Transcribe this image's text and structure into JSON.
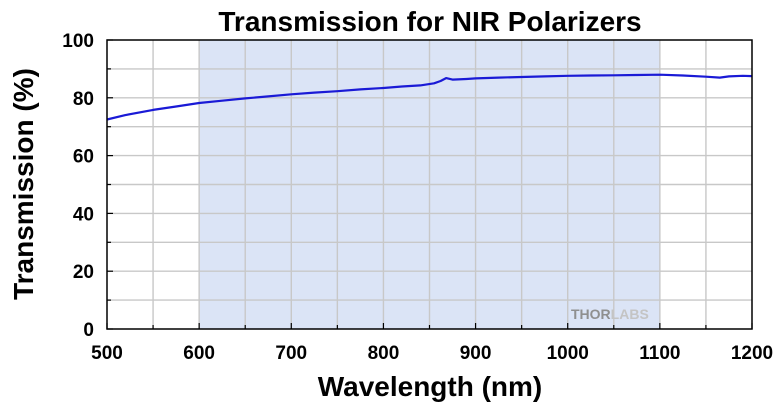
{
  "chart_data": {
    "type": "line",
    "title": "Transmission for NIR Polarizers",
    "xlabel": "Wavelength (nm)",
    "ylabel": "Transmission (%)",
    "xlim": [
      500,
      1200
    ],
    "ylim": [
      0,
      100
    ],
    "x_ticks": [
      "500",
      "600",
      "700",
      "800",
      "900",
      "1000",
      "1100",
      "1200"
    ],
    "y_ticks": [
      "0",
      "20",
      "40",
      "60",
      "80",
      "100"
    ],
    "grid": true,
    "shaded_region": {
      "x_start": 600,
      "x_end": 1100,
      "color": "#dbe4f6"
    },
    "series": [
      {
        "color": "#1a1ad6",
        "x": [
          500,
          520,
          550,
          575,
          600,
          625,
          650,
          675,
          700,
          725,
          750,
          775,
          800,
          820,
          840,
          855,
          862,
          868,
          875,
          890,
          900,
          925,
          950,
          975,
          1000,
          1025,
          1050,
          1075,
          1100,
          1125,
          1150,
          1165,
          1175,
          1190,
          1200
        ],
        "y": [
          72.5,
          74.0,
          75.8,
          77.0,
          78.2,
          79.0,
          79.8,
          80.5,
          81.2,
          81.8,
          82.3,
          82.9,
          83.4,
          83.9,
          84.3,
          85.0,
          85.8,
          86.8,
          86.3,
          86.5,
          86.7,
          87.0,
          87.2,
          87.4,
          87.6,
          87.7,
          87.8,
          87.9,
          88.0,
          87.7,
          87.3,
          87.0,
          87.4,
          87.6,
          87.5
        ]
      }
    ]
  },
  "watermark": {
    "part1": "THOR",
    "part2": "LABS"
  }
}
